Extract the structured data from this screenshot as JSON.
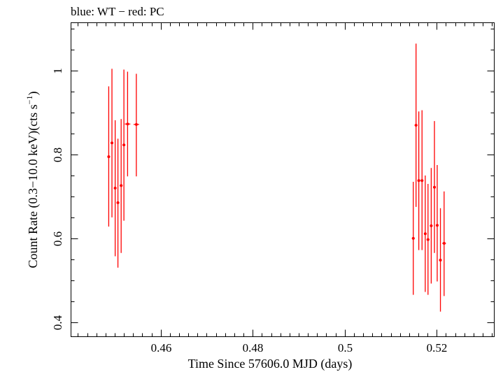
{
  "chart_data": {
    "type": "scatter",
    "title": "blue: WT − red: PC",
    "xlabel": "Time Since 57606.0 MJD (days)",
    "ylabel": "Count Rate (0.3−10.0 keV)(cts s",
    "ylabel_sup": "−1",
    "ylabel_tail": ")",
    "xlim": [
      0.4405,
      0.5325
    ],
    "ylim": [
      0.365,
      1.115
    ],
    "xticks": [
      {
        "value": 0.46,
        "label": "0.46"
      },
      {
        "value": 0.48,
        "label": "0.48"
      },
      {
        "value": 0.5,
        "label": "0.5"
      },
      {
        "value": 0.52,
        "label": "0.52"
      }
    ],
    "yticks": [
      {
        "value": 0.4,
        "label": "0.4"
      },
      {
        "value": 0.6,
        "label": "0.6"
      },
      {
        "value": 0.8,
        "label": "0.8"
      },
      {
        "value": 1.0,
        "label": "1"
      }
    ],
    "grid": false,
    "series": [
      {
        "color": "#ff0000",
        "points": [
          {
            "x": 0.4487,
            "y": 0.795,
            "ylo": 0.628,
            "yhi": 0.963,
            "xerr": 0.0003
          },
          {
            "x": 0.4494,
            "y": 0.828,
            "ylo": 0.65,
            "yhi": 1.005,
            "xerr": 0.0003
          },
          {
            "x": 0.4501,
            "y": 0.72,
            "ylo": 0.557,
            "yhi": 0.882,
            "xerr": 0.0003
          },
          {
            "x": 0.4507,
            "y": 0.685,
            "ylo": 0.53,
            "yhi": 0.838,
            "xerr": 0.0003
          },
          {
            "x": 0.4514,
            "y": 0.726,
            "ylo": 0.565,
            "yhi": 0.885,
            "xerr": 0.0003
          },
          {
            "x": 0.452,
            "y": 0.823,
            "ylo": 0.642,
            "yhi": 1.003,
            "xerr": 0.0003
          },
          {
            "x": 0.4528,
            "y": 0.873,
            "ylo": 0.748,
            "yhi": 0.998,
            "xerr": 0.0006
          },
          {
            "x": 0.4547,
            "y": 0.872,
            "ylo": 0.748,
            "yhi": 0.993,
            "xerr": 0.0006
          },
          {
            "x": 0.5149,
            "y": 0.6,
            "ylo": 0.465,
            "yhi": 0.735,
            "xerr": 0.0003
          },
          {
            "x": 0.5155,
            "y": 0.87,
            "ylo": 0.675,
            "yhi": 1.065,
            "xerr": 0.0003
          },
          {
            "x": 0.5161,
            "y": 0.738,
            "ylo": 0.572,
            "yhi": 0.903,
            "xerr": 0.0003
          },
          {
            "x": 0.5168,
            "y": 0.738,
            "ylo": 0.572,
            "yhi": 0.906,
            "xerr": 0.0003
          },
          {
            "x": 0.5175,
            "y": 0.611,
            "ylo": 0.472,
            "yhi": 0.75,
            "xerr": 0.0003
          },
          {
            "x": 0.5181,
            "y": 0.597,
            "ylo": 0.465,
            "yhi": 0.73,
            "xerr": 0.0003
          },
          {
            "x": 0.5188,
            "y": 0.63,
            "ylo": 0.492,
            "yhi": 0.768,
            "xerr": 0.0003
          },
          {
            "x": 0.5195,
            "y": 0.722,
            "ylo": 0.565,
            "yhi": 0.88,
            "xerr": 0.0003
          },
          {
            "x": 0.5201,
            "y": 0.631,
            "ylo": 0.497,
            "yhi": 0.775,
            "xerr": 0.0003
          },
          {
            "x": 0.5208,
            "y": 0.548,
            "ylo": 0.425,
            "yhi": 0.672,
            "xerr": 0.0003
          },
          {
            "x": 0.5216,
            "y": 0.588,
            "ylo": 0.462,
            "yhi": 0.712,
            "xerr": 0.0004
          }
        ]
      }
    ]
  }
}
